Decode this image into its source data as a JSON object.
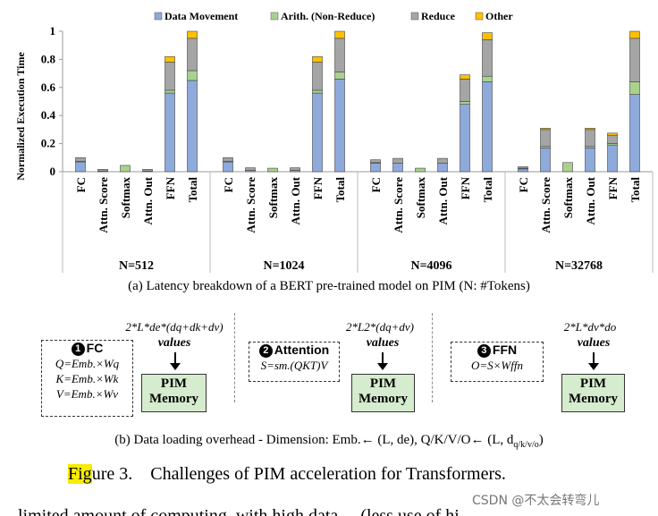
{
  "chart_data": {
    "type": "bar",
    "stacked": true,
    "ylabel": "Normalized Execution Time",
    "ylim": [
      0,
      1
    ],
    "yticks": [
      "0",
      "0.2",
      "0.4",
      "0.6",
      "0.8",
      "1"
    ],
    "grid": false,
    "legend_position": "top",
    "series": [
      {
        "name": "Data Movement",
        "color": "#8eaadb"
      },
      {
        "name": "Arith. (Non-Reduce)",
        "color": "#a9d18e"
      },
      {
        "name": "Reduce",
        "color": "#a5a5a5"
      },
      {
        "name": "Other",
        "color": "#ffc000"
      }
    ],
    "groups": [
      {
        "label": "N=512",
        "bars": [
          {
            "label": "FC",
            "values": [
              0.07,
              0.005,
              0.025,
              0.0
            ]
          },
          {
            "label": "Attn. Score",
            "values": [
              0.005,
              0.0,
              0.012,
              0.0
            ]
          },
          {
            "label": "Softmax",
            "values": [
              0.0,
              0.045,
              0.0,
              0.0
            ]
          },
          {
            "label": "Attn. Out",
            "values": [
              0.005,
              0.0,
              0.012,
              0.0
            ]
          },
          {
            "label": "FFN",
            "values": [
              0.56,
              0.02,
              0.2,
              0.04
            ]
          },
          {
            "label": "Total",
            "values": [
              0.65,
              0.07,
              0.23,
              0.05
            ]
          }
        ]
      },
      {
        "label": "N=1024",
        "bars": [
          {
            "label": "FC",
            "values": [
              0.07,
              0.005,
              0.025,
              0.0
            ]
          },
          {
            "label": "Attn. Score",
            "values": [
              0.01,
              0.0,
              0.018,
              0.0
            ]
          },
          {
            "label": "Softmax",
            "values": [
              0.0,
              0.025,
              0.0,
              0.0
            ]
          },
          {
            "label": "Attn. Out",
            "values": [
              0.01,
              0.0,
              0.018,
              0.0
            ]
          },
          {
            "label": "FFN",
            "values": [
              0.56,
              0.02,
              0.2,
              0.04
            ]
          },
          {
            "label": "Total",
            "values": [
              0.66,
              0.05,
              0.24,
              0.05
            ]
          }
        ]
      },
      {
        "label": "N=4096",
        "bars": [
          {
            "label": "FC",
            "values": [
              0.06,
              0.005,
              0.02,
              0.0
            ]
          },
          {
            "label": "Attn. Score",
            "values": [
              0.06,
              0.0,
              0.035,
              0.0
            ]
          },
          {
            "label": "Softmax",
            "values": [
              0.0,
              0.025,
              0.0,
              0.0
            ]
          },
          {
            "label": "Attn. Out",
            "values": [
              0.06,
              0.0,
              0.035,
              0.0
            ]
          },
          {
            "label": "FFN",
            "values": [
              0.48,
              0.02,
              0.16,
              0.03
            ]
          },
          {
            "label": "Total",
            "values": [
              0.64,
              0.04,
              0.26,
              0.05
            ]
          }
        ]
      },
      {
        "label": "N=32768",
        "bars": [
          {
            "label": "FC",
            "values": [
              0.02,
              0.005,
              0.01,
              0.0
            ]
          },
          {
            "label": "Attn. Score",
            "values": [
              0.17,
              0.01,
              0.12,
              0.01
            ]
          },
          {
            "label": "Softmax",
            "values": [
              0.0,
              0.065,
              0.0,
              0.0
            ]
          },
          {
            "label": "Attn. Out",
            "values": [
              0.17,
              0.01,
              0.12,
              0.01
            ]
          },
          {
            "label": "FFN",
            "values": [
              0.19,
              0.01,
              0.06,
              0.015
            ]
          },
          {
            "label": "Total",
            "values": [
              0.55,
              0.09,
              0.31,
              0.05
            ]
          }
        ]
      }
    ]
  },
  "captions": {
    "a": "(a) Latency breakdown of a BERT pre-trained model on PIM (N: #Tokens)",
    "b": "(b) Data loading overhead - Dimension: Emb.← (L, de), Q/K/V/O← (L, d",
    "b_sub": "q/k/v/o",
    "b_end": ")"
  },
  "diagram": {
    "blocks": [
      {
        "num": "1",
        "title": "FC",
        "lines": [
          "Q=Emb.×Wq",
          "K=Emb.×Wk",
          "V=Emb.×Wv"
        ],
        "formula": "2*L*de*(dq+dk+dv)",
        "values_label": "values",
        "mem": [
          "PIM",
          "Memory"
        ]
      },
      {
        "num": "2",
        "title": "Attention",
        "lines": [
          "S=sm.(QKT)V"
        ],
        "formula": "2*L2*(dq+dv)",
        "values_label": "values",
        "mem": [
          "PIM",
          "Memory"
        ]
      },
      {
        "num": "3",
        "title": "FFN",
        "lines": [
          "O=S×Wffn"
        ],
        "formula": "2*L*dv*do",
        "values_label": "values",
        "mem": [
          "PIM",
          "Memory"
        ]
      }
    ]
  },
  "figure": {
    "prefix_highlight": "Fig",
    "rest": "ure 3.    Challenges of PIM acceleration for Transformers."
  },
  "watermark": "CSDN @不太会转弯儿",
  "bottom_text": "limited amount of computing, with high data ... (less use of hi"
}
